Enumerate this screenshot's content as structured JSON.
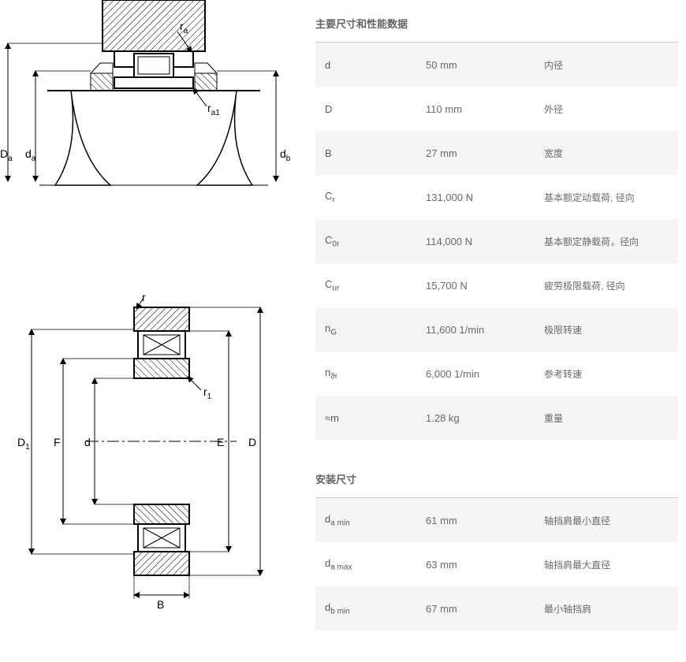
{
  "diagrams": {
    "top": {
      "labels": {
        "ra": "r",
        "ra_sub": "a",
        "ra1": "r",
        "ra1_sub": "a1",
        "Da": "D",
        "Da_sub": "a",
        "da": "d",
        "da_sub": "a",
        "db": "d",
        "db_sub": "b"
      },
      "hatch_color": "#000000",
      "line_color": "#000000",
      "bg_color": "#ffffff"
    },
    "bot": {
      "labels": {
        "r": "r",
        "r1": "r",
        "r1_sub": "1",
        "D1": "D",
        "D1_sub": "1",
        "F": "F",
        "d": "d",
        "E": "E",
        "D": "D",
        "B": "B"
      },
      "hatch_color": "#000000",
      "line_color": "#000000"
    }
  },
  "sections": [
    {
      "title": "主要尺寸和性能数据",
      "rows": [
        {
          "sym": "d",
          "sub": "",
          "val": "50 mm",
          "desc": "内径"
        },
        {
          "sym": "D",
          "sub": "",
          "val": "110 mm",
          "desc": "外径"
        },
        {
          "sym": "B",
          "sub": "",
          "val": "27 mm",
          "desc": "宽度"
        },
        {
          "sym": "C",
          "sub": "r",
          "val": "131,000 N",
          "desc": "基本额定动载荷, 径向"
        },
        {
          "sym": "C",
          "sub": "0r",
          "val": "114,000 N",
          "desc": "基本额定静载荷，径向"
        },
        {
          "sym": "C",
          "sub": "ur",
          "val": "15,700 N",
          "desc": "疲劳极限载荷, 径向"
        },
        {
          "sym": "n",
          "sub": "G",
          "val": "11,600 1/min",
          "desc": "极限转速"
        },
        {
          "sym": "n",
          "sub": "ϑr",
          "val": "6,000 1/min",
          "desc": "参考转速"
        },
        {
          "sym": "≈m",
          "sub": "",
          "val": "1.28 kg",
          "desc": "重量"
        }
      ]
    },
    {
      "title": "安装尺寸",
      "rows": [
        {
          "sym": "d",
          "sub": "a min",
          "val": "61 mm",
          "desc": "轴挡肩最小直径"
        },
        {
          "sym": "d",
          "sub": "a max",
          "val": "63 mm",
          "desc": "轴挡肩最大直径"
        },
        {
          "sym": "d",
          "sub": "b min",
          "val": "67 mm",
          "desc": "最小轴挡肩"
        }
      ]
    }
  ],
  "colors": {
    "text": "#5a5a5a",
    "row_alt_bg": "#f5f5f5",
    "border": "#d0d0d0",
    "page_bg": "#ffffff"
  }
}
